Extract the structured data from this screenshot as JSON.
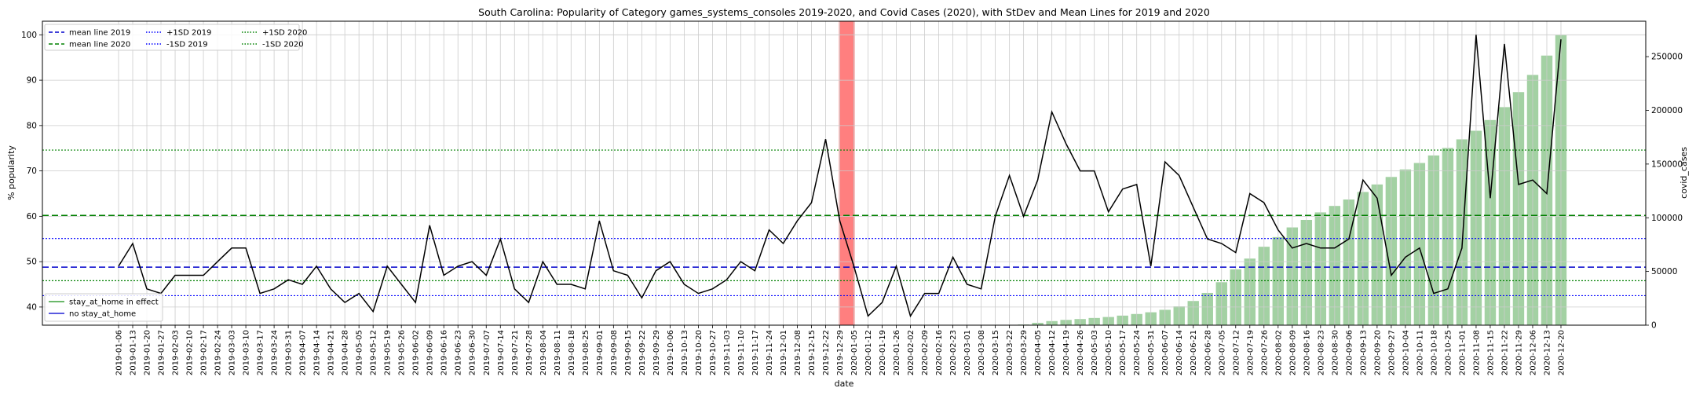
{
  "chart_data": {
    "type": "line",
    "title": "South Carolina: Popularity of Category games_systems_consoles 2019-2020, and Covid Cases (2020), with StDev and Mean Lines for 2019 and 2020",
    "xlabel": "date",
    "ylabel": "% popularity",
    "y2label": "covid_cases",
    "ylim": [
      36,
      103
    ],
    "y2lim": [
      0,
      283000
    ],
    "yticks": [
      40,
      50,
      60,
      70,
      80,
      90,
      100
    ],
    "y2ticks": [
      0,
      50000,
      100000,
      150000,
      200000,
      250000
    ],
    "grid": true,
    "dates": [
      "2019-01-06",
      "2019-01-13",
      "2019-01-20",
      "2019-01-27",
      "2019-02-03",
      "2019-02-10",
      "2019-02-17",
      "2019-02-24",
      "2019-03-03",
      "2019-03-10",
      "2019-03-17",
      "2019-03-24",
      "2019-03-31",
      "2019-04-07",
      "2019-04-14",
      "2019-04-21",
      "2019-04-28",
      "2019-05-05",
      "2019-05-12",
      "2019-05-19",
      "2019-05-26",
      "2019-06-02",
      "2019-06-09",
      "2019-06-16",
      "2019-06-23",
      "2019-06-30",
      "2019-07-07",
      "2019-07-14",
      "2019-07-21",
      "2019-07-28",
      "2019-08-04",
      "2019-08-11",
      "2019-08-18",
      "2019-08-25",
      "2019-09-01",
      "2019-09-08",
      "2019-09-15",
      "2019-09-22",
      "2019-09-29",
      "2019-10-06",
      "2019-10-13",
      "2019-10-20",
      "2019-10-27",
      "2019-11-03",
      "2019-11-10",
      "2019-11-17",
      "2019-11-24",
      "2019-12-01",
      "2019-12-08",
      "2019-12-15",
      "2019-12-22",
      "2019-12-29",
      "2020-01-05",
      "2020-01-12",
      "2020-01-19",
      "2020-01-26",
      "2020-02-02",
      "2020-02-09",
      "2020-02-16",
      "2020-02-23",
      "2020-03-01",
      "2020-03-08",
      "2020-03-15",
      "2020-03-22",
      "2020-03-29",
      "2020-04-05",
      "2020-04-12",
      "2020-04-19",
      "2020-04-26",
      "2020-05-03",
      "2020-05-10",
      "2020-05-17",
      "2020-05-24",
      "2020-05-31",
      "2020-06-07",
      "2020-06-14",
      "2020-06-21",
      "2020-06-28",
      "2020-07-05",
      "2020-07-12",
      "2020-07-19",
      "2020-07-26",
      "2020-08-02",
      "2020-08-09",
      "2020-08-16",
      "2020-08-23",
      "2020-08-30",
      "2020-09-06",
      "2020-09-13",
      "2020-09-20",
      "2020-09-27",
      "2020-10-04",
      "2020-10-11",
      "2020-10-18",
      "2020-10-25",
      "2020-11-01",
      "2020-11-08",
      "2020-11-15",
      "2020-11-22",
      "2020-11-29",
      "2020-12-06",
      "2020-12-13",
      "2020-12-20"
    ],
    "series": [
      {
        "name": "popularity",
        "color": "#000000",
        "values": [
          49,
          54,
          44,
          43,
          47,
          47,
          47,
          50,
          53,
          53,
          43,
          44,
          46,
          45,
          49,
          44,
          41,
          43,
          39,
          49,
          45,
          41,
          58,
          47,
          49,
          50,
          47,
          55,
          44,
          41,
          50,
          45,
          45,
          44,
          59,
          48,
          47,
          42,
          48,
          50,
          45,
          43,
          44,
          46,
          50,
          48,
          57,
          54,
          59,
          63,
          77,
          59,
          49,
          38,
          41,
          49,
          38,
          43,
          43,
          51,
          45,
          44,
          60,
          69,
          60,
          68,
          83,
          76,
          70,
          70,
          61,
          66,
          67,
          49,
          72,
          69,
          62,
          55,
          54,
          52,
          65,
          63,
          57,
          53,
          54,
          53,
          53,
          55,
          68,
          64,
          47,
          51,
          53,
          43,
          44,
          53,
          100,
          64,
          98,
          67,
          68,
          65,
          99
        ]
      }
    ],
    "covid_cases": [
      0,
      0,
      0,
      0,
      0,
      0,
      0,
      0,
      0,
      0,
      0,
      0,
      0,
      0,
      0,
      0,
      0,
      0,
      0,
      0,
      0,
      0,
      0,
      0,
      0,
      0,
      0,
      0,
      0,
      0,
      0,
      0,
      0,
      0,
      0,
      0,
      0,
      0,
      0,
      0,
      0,
      0,
      0,
      0,
      0,
      0,
      0,
      0,
      0,
      0,
      0,
      0,
      0,
      0,
      0,
      0,
      0,
      0,
      0,
      0,
      0,
      0,
      0,
      0,
      600,
      2200,
      3800,
      4900,
      5700,
      6700,
      7600,
      8900,
      10400,
      12000,
      14300,
      17500,
      22500,
      30000,
      40000,
      52000,
      62000,
      73000,
      82000,
      91000,
      98000,
      105000,
      111000,
      117000,
      124000,
      131000,
      138000,
      145000,
      151000,
      158000,
      165000,
      173000,
      181000,
      191000,
      203000,
      217000,
      233000,
      251000,
      270000
    ],
    "mean_2019": 48.8,
    "sd_2019": 6.3,
    "mean_2020": 60.2,
    "sd_2020": 14.4,
    "stay_at_home_range": [
      "2019-12-29",
      "2020-01-05"
    ],
    "legend_lines": [
      {
        "label": "mean line 2019",
        "color": "#0000cc",
        "style": "dashed"
      },
      {
        "label": "mean line 2020",
        "color": "#008000",
        "style": "dashed"
      },
      {
        "label": "+1SD 2019",
        "color": "#0000ff",
        "style": "dotted"
      },
      {
        "label": "-1SD 2019",
        "color": "#0000ff",
        "style": "dotted"
      },
      {
        "label": "+1SD 2020",
        "color": "#008000",
        "style": "dotted"
      },
      {
        "label": "-1SD 2020",
        "color": "#008000",
        "style": "dotted"
      }
    ],
    "legend_state": [
      {
        "label": "stay_at_home in effect",
        "color": "#6bb86b"
      },
      {
        "label": "no stay_at_home",
        "color": "#5a5ae0"
      }
    ],
    "colors": {
      "bars": "#a3d1a3",
      "stay_band": "#ff7f7f",
      "grid": "#cccccc"
    }
  }
}
